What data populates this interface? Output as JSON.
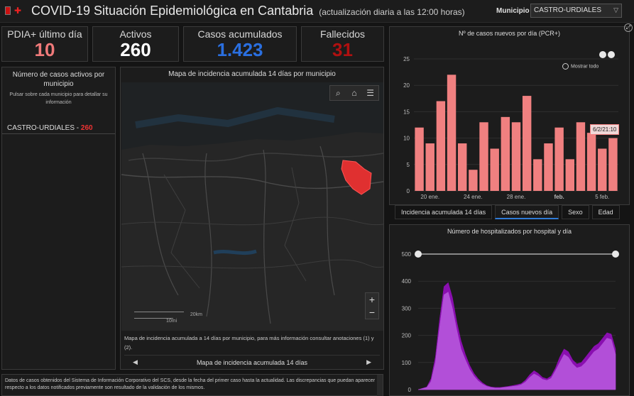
{
  "header": {
    "title": "COVID-19 Situación Epidemiológica en Cantabria",
    "subtitle": "(actualización diaria a las 12:00 horas)",
    "municipio_label": "Municipio",
    "municipio_value": "CASTRO-URDIALES"
  },
  "kpis": [
    {
      "label": "PDIA+ último día",
      "value": "10",
      "color": "#f07a7a"
    },
    {
      "label": "Activos",
      "value": "260",
      "color": "#ffffff"
    },
    {
      "label": "Casos acumulados",
      "value": "1.423",
      "color": "#2a6fe0"
    },
    {
      "label": "Fallecidos",
      "value": "31",
      "color": "#b01010"
    }
  ],
  "list_panel": {
    "title": "Número de casos activos por municipio",
    "hint": "Pulsar sobre cada municipio para detallar su información",
    "item_name": "CASTRO-URDIALES - ",
    "item_value": "260"
  },
  "map": {
    "title": "Mapa de incidencia acumulada 14 días por municipio",
    "scale_km": "20km",
    "scale_mi": "10mi",
    "note": "Mapa de incidencia acumulada a 14 días por municipio, para más información consultar anotaciones (1) y (2).",
    "footer": "Mapa de incidencia acumulada 14 días",
    "icons": [
      "search-icon",
      "home-icon",
      "list-icon"
    ]
  },
  "bottom_text": "Datos de casos obtenidos del Sistema de Información Corporativo del SCS, desde la fecha del primer caso hasta la actualidad. Las discrepancias que puedan aparecer respecto a los datos notificados previamente son resultado de la validación de los mismos.",
  "chart1_ui": {
    "show_all": "Mostrar todo",
    "tooltip": "6/2/21:10"
  },
  "tabs": [
    "Incidencia acumulada 14 días",
    "Casos nuevos día",
    "Sexo",
    "Edad"
  ],
  "active_tab": 1,
  "chart_data": [
    {
      "type": "bar",
      "title": "Nº de casos nuevos por día (PCR+)",
      "xlabel": "",
      "ylabel": "",
      "ylim": [
        0,
        25
      ],
      "yticks": [
        0,
        5,
        10,
        15,
        20,
        25
      ],
      "xticks": [
        "20 ene.",
        "24 ene.",
        "28 ene.",
        "feb.",
        "5 feb."
      ],
      "xtick_index": [
        1,
        5,
        9,
        13,
        17
      ],
      "values": [
        12,
        9,
        17,
        22,
        9,
        4,
        13,
        8,
        14,
        13,
        18,
        6,
        9,
        12,
        6,
        13,
        11,
        8,
        10
      ],
      "color": "#f08080"
    },
    {
      "type": "area",
      "title": "Número de hospitalizados por hospital y día",
      "ylim": [
        0,
        500
      ],
      "yticks": [
        0,
        100,
        200,
        300,
        400,
        500
      ],
      "series": [
        {
          "color": "#8a0fb0",
          "values": [
            0,
            5,
            10,
            40,
            120,
            260,
            380,
            395,
            340,
            250,
            180,
            130,
            90,
            60,
            40,
            25,
            15,
            10,
            8,
            8,
            10,
            12,
            15,
            18,
            22,
            35,
            55,
            70,
            60,
            45,
            40,
            50,
            80,
            120,
            150,
            140,
            110,
            95,
            100,
            120,
            140,
            160,
            170,
            190,
            210,
            205,
            150
          ]
        },
        {
          "color": "#b24fd8",
          "values": [
            0,
            4,
            8,
            30,
            100,
            230,
            350,
            360,
            300,
            220,
            150,
            110,
            75,
            50,
            32,
            20,
            12,
            8,
            6,
            6,
            8,
            10,
            12,
            14,
            18,
            28,
            45,
            58,
            50,
            38,
            34,
            42,
            70,
            100,
            130,
            120,
            95,
            80,
            85,
            100,
            120,
            140,
            150,
            170,
            190,
            185,
            130
          ]
        }
      ]
    }
  ]
}
